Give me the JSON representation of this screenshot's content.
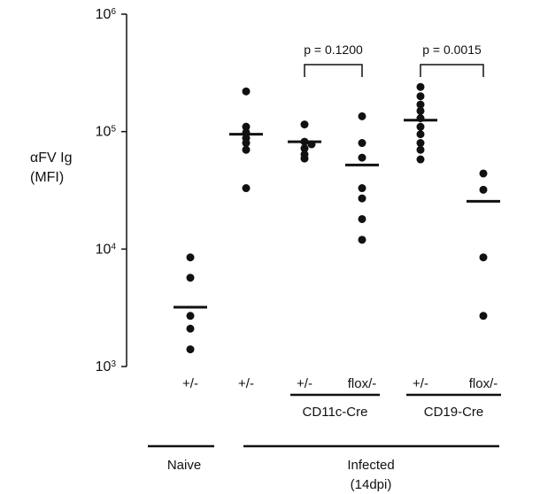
{
  "chart_data": {
    "type": "scatter",
    "ylabel_line1": "αFV Ig",
    "ylabel_line2": "(MFI)",
    "yscale": "log",
    "ylim": [
      1000,
      1000000
    ],
    "yticks": [
      {
        "value": 1000,
        "base": "10",
        "exp": "3"
      },
      {
        "value": 10000,
        "base": "10",
        "exp": "4"
      },
      {
        "value": 100000,
        "base": "10",
        "exp": "5"
      },
      {
        "value": 1000000,
        "base": "10",
        "exp": "6"
      }
    ],
    "groups": [
      {
        "label": "+/-",
        "points": [
          8500,
          5700,
          2700,
          2100,
          1400
        ],
        "mean": 3200
      },
      {
        "label": "+/-",
        "points": [
          220000,
          110000,
          98000,
          88000,
          80000,
          70000,
          33000
        ],
        "mean": 95000
      },
      {
        "label": "+/-",
        "points": [
          115000,
          82000,
          78000,
          72000,
          64000,
          59000
        ],
        "mean": 82000
      },
      {
        "label": "flox/-",
        "points": [
          135000,
          80000,
          60000,
          33000,
          27000,
          18000,
          12000
        ],
        "mean": 52000
      },
      {
        "label": "+/-",
        "points": [
          240000,
          200000,
          170000,
          150000,
          130000,
          110000,
          95000,
          80000,
          70000,
          58000
        ],
        "mean": 125000
      },
      {
        "label": "flox/-",
        "points": [
          44000,
          32000,
          8500,
          2700
        ],
        "mean": 25500
      }
    ],
    "comparisons": [
      {
        "text": "p = 0.1200",
        "from": 2,
        "to": 3
      },
      {
        "text": "p = 0.0015",
        "from": 4,
        "to": 5
      }
    ],
    "genotype_labels": [
      {
        "text": "CD11c-Cre",
        "from": 2,
        "to": 3
      },
      {
        "text": "CD19-Cre",
        "from": 4,
        "to": 5
      }
    ],
    "condition_labels": [
      {
        "line1": "Naive",
        "line2": "",
        "from": 0,
        "to": 0
      },
      {
        "line1": "Infected",
        "line2": "(14dpi)",
        "from": 1,
        "to": 5
      }
    ]
  }
}
